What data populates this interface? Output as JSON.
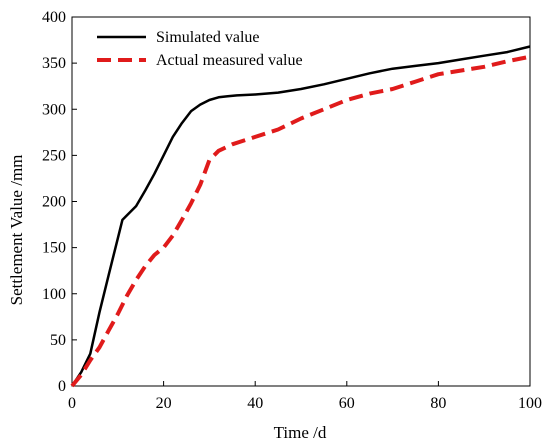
{
  "chart_data": {
    "type": "line",
    "xlabel": "Time /d",
    "ylabel": "Settlement Value /mm",
    "xlim": [
      0,
      100
    ],
    "ylim": [
      0,
      400
    ],
    "xticks": [
      0,
      20,
      40,
      60,
      80,
      100
    ],
    "yticks": [
      0,
      50,
      100,
      150,
      200,
      250,
      300,
      350,
      400
    ],
    "legend_position": "top-left",
    "series": [
      {
        "name": "Simulated value",
        "color": "#000000",
        "style": "solid",
        "x": [
          0,
          2,
          4,
          6,
          8,
          10,
          11,
          12,
          14,
          16,
          18,
          20,
          22,
          24,
          26,
          28,
          30,
          32,
          34,
          36,
          40,
          45,
          50,
          55,
          60,
          65,
          70,
          75,
          80,
          85,
          90,
          95,
          100
        ],
        "y": [
          0,
          15,
          35,
          80,
          120,
          160,
          180,
          185,
          195,
          212,
          230,
          250,
          270,
          285,
          298,
          305,
          310,
          313,
          314,
          315,
          316,
          318,
          322,
          327,
          333,
          339,
          344,
          347,
          350,
          354,
          358,
          362,
          368
        ]
      },
      {
        "name": "Actual measured value",
        "color": "#e01b1b",
        "style": "dashed",
        "x": [
          0,
          2,
          4,
          6,
          8,
          10,
          12,
          14,
          16,
          18,
          20,
          22,
          24,
          26,
          28,
          30,
          32,
          35,
          40,
          45,
          50,
          55,
          60,
          65,
          70,
          75,
          80,
          85,
          90,
          95,
          100
        ],
        "y": [
          0,
          12,
          28,
          42,
          60,
          78,
          98,
          115,
          130,
          142,
          150,
          163,
          180,
          198,
          218,
          245,
          255,
          262,
          270,
          278,
          290,
          300,
          310,
          317,
          322,
          330,
          338,
          342,
          346,
          352,
          357
        ]
      }
    ]
  }
}
